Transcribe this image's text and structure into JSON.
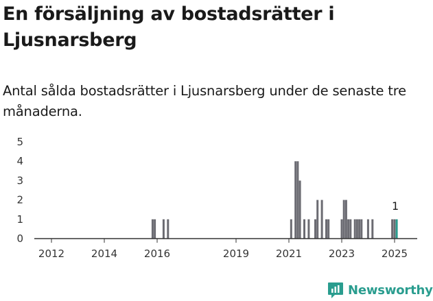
{
  "title": "En försäljning av bostadsrätter i Ljusnarsberg",
  "subtitle": "Antal sålda bostadsrätter i Ljusnarsberg under de senaste tre månaderna.",
  "brand": "Newsworthy",
  "colors": {
    "bar": "#6b6b72",
    "highlight": "#2a9d8f",
    "axis": "#333333"
  },
  "chart_data": {
    "type": "bar",
    "title": "",
    "xlabel": "",
    "ylabel": "",
    "ylim": [
      0,
      5
    ],
    "yticks": [
      0,
      1,
      2,
      3,
      4,
      5
    ],
    "x_tick_labels": [
      "2012",
      "2014",
      "2016",
      "2019",
      "2021",
      "2023",
      "2025"
    ],
    "grid": false,
    "highlight_label": "1",
    "bars": [
      {
        "date": "2015-11",
        "value": 1
      },
      {
        "date": "2015-12",
        "value": 1
      },
      {
        "date": "2016-04",
        "value": 1
      },
      {
        "date": "2016-06",
        "value": 1
      },
      {
        "date": "2021-02",
        "value": 1
      },
      {
        "date": "2021-04",
        "value": 4
      },
      {
        "date": "2021-05",
        "value": 4
      },
      {
        "date": "2021-06",
        "value": 3
      },
      {
        "date": "2021-08",
        "value": 1
      },
      {
        "date": "2021-10",
        "value": 1
      },
      {
        "date": "2022-01",
        "value": 1
      },
      {
        "date": "2022-02",
        "value": 2
      },
      {
        "date": "2022-04",
        "value": 2
      },
      {
        "date": "2022-06",
        "value": 1
      },
      {
        "date": "2022-07",
        "value": 1
      },
      {
        "date": "2023-01",
        "value": 1
      },
      {
        "date": "2023-02",
        "value": 2
      },
      {
        "date": "2023-03",
        "value": 2
      },
      {
        "date": "2023-04",
        "value": 1
      },
      {
        "date": "2023-05",
        "value": 1
      },
      {
        "date": "2023-07",
        "value": 1
      },
      {
        "date": "2023-08",
        "value": 1
      },
      {
        "date": "2023-09",
        "value": 1
      },
      {
        "date": "2023-10",
        "value": 1
      },
      {
        "date": "2024-01",
        "value": 1
      },
      {
        "date": "2024-03",
        "value": 1
      },
      {
        "date": "2024-12",
        "value": 1
      },
      {
        "date": "2025-01",
        "value": 1
      },
      {
        "date": "2025-02",
        "value": 1,
        "highlight": true
      }
    ]
  }
}
